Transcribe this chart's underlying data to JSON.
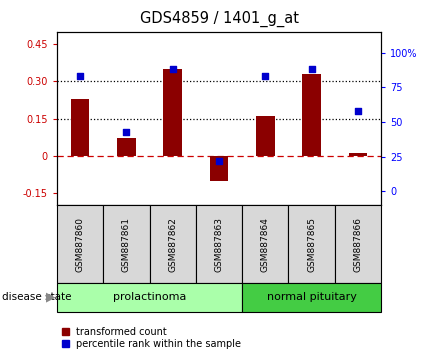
{
  "title": "GDS4859 / 1401_g_at",
  "samples": [
    "GSM887860",
    "GSM887861",
    "GSM887862",
    "GSM887863",
    "GSM887864",
    "GSM887865",
    "GSM887866"
  ],
  "transformed_count": [
    0.23,
    0.07,
    0.35,
    -0.1,
    0.16,
    0.33,
    0.01
  ],
  "percentile_rank_pct": [
    83,
    43,
    88,
    22,
    83,
    88,
    58
  ],
  "bar_color": "#8B0000",
  "dot_color": "#0000CD",
  "ylim_left": [
    -0.2,
    0.5
  ],
  "yticks_left": [
    -0.15,
    0.0,
    0.15,
    0.3,
    0.45
  ],
  "ytick_labels_left": [
    "-0.15",
    "0",
    "0.15",
    "0.30",
    "0.45"
  ],
  "ylim_right": [
    -10,
    115
  ],
  "yticks_right": [
    0,
    25,
    50,
    75,
    100
  ],
  "ytick_labels_right": [
    "0",
    "25",
    "50",
    "75",
    "100%"
  ],
  "hlines": [
    0.15,
    0.3
  ],
  "zero_line": 0.0,
  "disease_state_label": "disease state",
  "group_prolact": {
    "label": "prolactinoma",
    "start": 0,
    "end": 3,
    "color": "#aaffaa"
  },
  "group_normal": {
    "label": "normal pituitary",
    "start": 4,
    "end": 6,
    "color": "#44cc44"
  },
  "legend_items": [
    {
      "label": "transformed count",
      "color": "#8B0000"
    },
    {
      "label": "percentile rank within the sample",
      "color": "#0000CD"
    }
  ],
  "cell_bg_color": "#d8d8d8",
  "bar_width": 0.4
}
